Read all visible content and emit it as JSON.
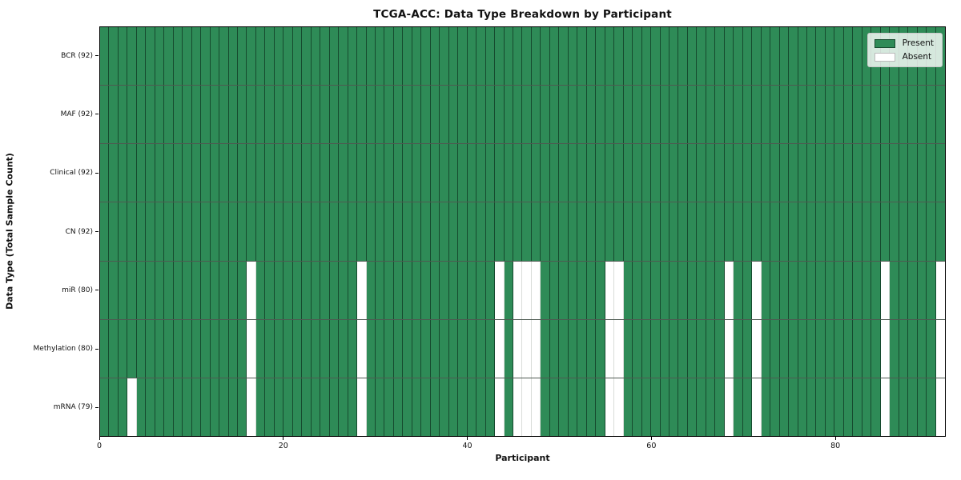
{
  "chart_data": {
    "type": "heatmap",
    "title": "TCGA-ACC: Data Type Breakdown by Participant",
    "xlabel": "Participant",
    "ylabel": "Data Type (Total Sample Count)",
    "x_ticks": [
      0,
      20,
      40,
      60,
      80
    ],
    "n_participants": 92,
    "grid": true,
    "legend_position": "upper right",
    "rows": [
      {
        "label": "BCR (92)",
        "present_count": 92,
        "absent_participants": []
      },
      {
        "label": "MAF (92)",
        "present_count": 92,
        "absent_participants": []
      },
      {
        "label": "Clinical (92)",
        "present_count": 92,
        "absent_participants": []
      },
      {
        "label": "CN (92)",
        "present_count": 92,
        "absent_participants": []
      },
      {
        "label": "miR (80)",
        "present_count": 80,
        "absent_participants": [
          16,
          28,
          43,
          45,
          46,
          47,
          55,
          56,
          68,
          71,
          85,
          91
        ]
      },
      {
        "label": "Methylation (80)",
        "present_count": 80,
        "absent_participants": [
          16,
          28,
          43,
          45,
          46,
          47,
          55,
          56,
          68,
          71,
          85,
          91
        ]
      },
      {
        "label": "mRNA (79)",
        "present_count": 79,
        "absent_participants": [
          3,
          16,
          28,
          43,
          45,
          46,
          47,
          55,
          56,
          68,
          71,
          85,
          91
        ]
      }
    ],
    "legend": [
      {
        "label": "Present",
        "color": "#2e8b57"
      },
      {
        "label": "Absent",
        "color": "#ffffff"
      }
    ],
    "colors": {
      "present": "#2e8b57",
      "absent": "#ffffff",
      "cell_edge_present": "rgba(8,34,21,0.62)",
      "cell_edge_absent": "#d9ddd9",
      "row_divider": "#4e5a51",
      "spine": "#000000"
    }
  }
}
